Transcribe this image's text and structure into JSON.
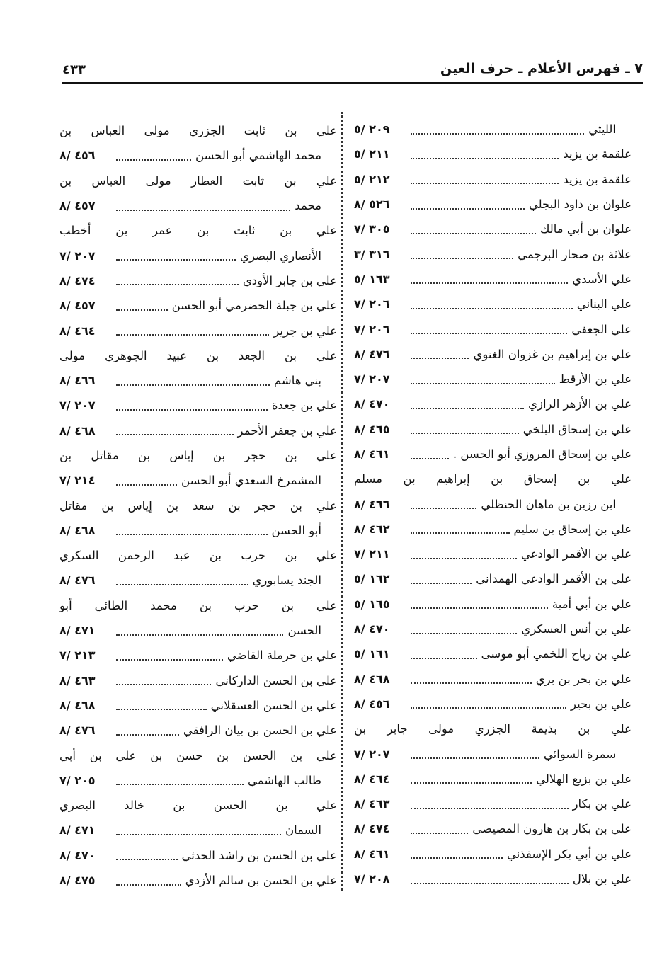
{
  "header": {
    "title": "٧ ـ فهرس الأعلام ـ حرف العين",
    "page_number": "٤٣٣"
  },
  "right_column": [
    {
      "lines": [
        "الليثي"
      ],
      "ref": "٢٠٩ /٥",
      "continued": true
    },
    {
      "lines": [
        "علقمة بن يزيد"
      ],
      "ref": "٢١١ /٥"
    },
    {
      "lines": [
        "علقمة بن يزيد"
      ],
      "ref": "٢١٢ /٥"
    },
    {
      "lines": [
        "علوان بن داود البجلي"
      ],
      "ref": "٥٢٦ /٨"
    },
    {
      "lines": [
        "علوان بن أبي مالك"
      ],
      "ref": "٣٠٥ /٧"
    },
    {
      "lines": [
        "علاثة بن صحار البرجمي"
      ],
      "ref": "٣١٦ /٣"
    },
    {
      "lines": [
        "علي الأسدي"
      ],
      "ref": "١٦٣ /٥"
    },
    {
      "lines": [
        "علي البناني"
      ],
      "ref": "٢٠٦ /٧"
    },
    {
      "lines": [
        "علي الجعفي"
      ],
      "ref": "٢٠٦ /٧"
    },
    {
      "lines": [
        "علي بن إبراهيم بن غزوان الغنوي"
      ],
      "ref": "٤٧٦ /٨"
    },
    {
      "lines": [
        "علي بن الأرقط"
      ],
      "ref": "٢٠٧ /٧"
    },
    {
      "lines": [
        "علي بن الأزهر الرازي"
      ],
      "ref": "٤٧٠ /٨"
    },
    {
      "lines": [
        "علي بن إسحاق البلخي"
      ],
      "ref": "٤٦٥ /٨"
    },
    {
      "lines": [
        "علي بن إسحاق المروزي أبو الحسن ."
      ],
      "ref": "٤٦١ /٨"
    },
    {
      "lines": [
        "علي بن إسحاق بن إبراهيم بن مسلم",
        "ابن رزين بن ماهان الحنظلي"
      ],
      "ref": "٤٦٦ /٨"
    },
    {
      "lines": [
        "علي بن إسحاق بن سليم"
      ],
      "ref": "٤٦٢ /٨"
    },
    {
      "lines": [
        "علي بن الأقمر الوادعي"
      ],
      "ref": "٢١١ /٧"
    },
    {
      "lines": [
        "علي بن الأقمر الوادعي الهمداني"
      ],
      "ref": "١٦٢ /٥"
    },
    {
      "lines": [
        "علي بن أبي أمية"
      ],
      "ref": "١٦٥ /٥"
    },
    {
      "lines": [
        "علي بن أنس العسكري"
      ],
      "ref": "٤٧٠ /٨"
    },
    {
      "lines": [
        "علي بن رباح اللخمي أبو موسى"
      ],
      "ref": "١٦١ /٥"
    },
    {
      "lines": [
        "علي بن بحر بن بري"
      ],
      "ref": "٤٦٨ /٨"
    },
    {
      "lines": [
        "علي بن بحير"
      ],
      "ref": "٤٥٦ /٨"
    },
    {
      "lines": [
        "علي بن بذيمة الجزري مولى جابر بن",
        "سمرة السوائي"
      ],
      "ref": "٢٠٧ /٧"
    },
    {
      "lines": [
        "علي بن بزيع الهلالي"
      ],
      "ref": "٤٦٤ /٨"
    },
    {
      "lines": [
        "علي بن بكار"
      ],
      "ref": "٤٦٣ /٨"
    },
    {
      "lines": [
        "علي بن بكار بن هارون المصيصي"
      ],
      "ref": "٤٧٤ /٨"
    },
    {
      "lines": [
        "علي بن أبي بكر الإسفذني"
      ],
      "ref": "٤٦١ /٨"
    },
    {
      "lines": [
        "علي بن بلال"
      ],
      "ref": "٢٠٨ /٧"
    }
  ],
  "left_column": [
    {
      "lines": [
        "علي بن ثابت الجزري مولى العباس بن",
        "محمد الهاشمي أبو الحسن"
      ],
      "ref": "٤٥٦ /٨"
    },
    {
      "lines": [
        "علي بن ثابت العطار مولى العباس بن",
        "محمد"
      ],
      "ref": "٤٥٧ /٨"
    },
    {
      "lines": [
        "علي بن ثابت بن عمر بن أخطب",
        "الأنصاري البصري"
      ],
      "ref": "٢٠٧ /٧"
    },
    {
      "lines": [
        "علي بن جابر الأودي"
      ],
      "ref": "٤٧٤ /٨"
    },
    {
      "lines": [
        "علي بن جبلة الحضرمي أبو الحسن"
      ],
      "ref": "٤٥٧ /٨"
    },
    {
      "lines": [
        "علي بن جرير"
      ],
      "ref": "٤٦٤ /٨"
    },
    {
      "lines": [
        "علي بن الجعد بن عبيد الجوهري مولى",
        "بني هاشم"
      ],
      "ref": "٤٦٦ /٨"
    },
    {
      "lines": [
        "علي بن جعدة"
      ],
      "ref": "٢٠٧ /٧"
    },
    {
      "lines": [
        "علي بن جعفر الأحمر"
      ],
      "ref": "٤٦٨ /٨"
    },
    {
      "lines": [
        "علي بن حجر بن إياس بن مقاتل بن",
        "المشمرخ السعدي أبو الحسن"
      ],
      "ref": "٢١٤ /٧"
    },
    {
      "lines": [
        "علي بن حجر بن سعد بن إياس بن مقاتل",
        "أبو الحسن"
      ],
      "ref": "٤٦٨ /٨"
    },
    {
      "lines": [
        "علي بن حرب بن عبد الرحمن السكري",
        "الجند يسابوري"
      ],
      "ref": "٤٧٦ /٨"
    },
    {
      "lines": [
        "علي بن حرب بن محمد الطائي أبو",
        "الحسن"
      ],
      "ref": "٤٧١ /٨"
    },
    {
      "lines": [
        "علي بن حرملة القاضي"
      ],
      "ref": "٢١٣ /٧"
    },
    {
      "lines": [
        "علي بن الحسن الداركاني"
      ],
      "ref": "٤٦٣ /٨"
    },
    {
      "lines": [
        "علي بن الحسن العسقلاني"
      ],
      "ref": "٤٦٨ /٨"
    },
    {
      "lines": [
        "علي بن الحسن بن بيان الرافقي"
      ],
      "ref": "٤٧٦ /٨"
    },
    {
      "lines": [
        "علي بن الحسن بن حسن بن علي بن أبي",
        "طالب الهاشمي"
      ],
      "ref": "٢٠٥ /٧"
    },
    {
      "lines": [
        "علي بن الحسن بن خالد البصري",
        "السمان"
      ],
      "ref": "٤٧١ /٨"
    },
    {
      "lines": [
        "علي بن الحسن بن راشد الحدثي"
      ],
      "ref": "٤٧٠ /٨"
    },
    {
      "lines": [
        "علي بن الحسن بن سالم الأزدي"
      ],
      "ref": "٤٧٥ /٨"
    }
  ]
}
